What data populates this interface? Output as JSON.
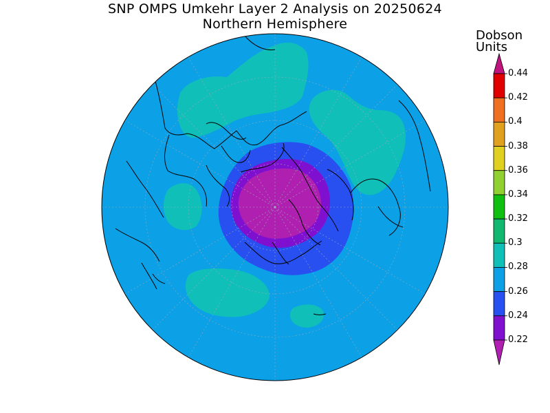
{
  "title": "SNP OMPS Umkehr Layer 2 Analysis on 20250624",
  "subtitle": "Northern Hemisphere",
  "colorbar": {
    "units_line1": "Dobson",
    "units_line2": "Units",
    "ticks": [
      "0.44",
      "0.42",
      "0.4",
      "0.38",
      "0.36",
      "0.34",
      "0.32",
      "0.3",
      "0.28",
      "0.26",
      "0.24",
      "0.22"
    ],
    "bins": [
      {
        "color": "#c0147f"
      },
      {
        "color": "#e00000"
      },
      {
        "color": "#ee7020"
      },
      {
        "color": "#e0a020"
      },
      {
        "color": "#e0d020"
      },
      {
        "color": "#90d030"
      },
      {
        "color": "#10c010"
      },
      {
        "color": "#10b870"
      },
      {
        "color": "#10c0b8"
      },
      {
        "color": "#0ca0e6"
      },
      {
        "color": "#2850f0"
      },
      {
        "color": "#8010d0"
      },
      {
        "color": "#b020b0"
      }
    ]
  },
  "map": {
    "background_level_color": "#0ca0e6",
    "high_level_color": "#10c0b8",
    "low_level_color": "#2850f0",
    "min_level_color": "#8010d0",
    "core_level_color": "#b020b0"
  }
}
